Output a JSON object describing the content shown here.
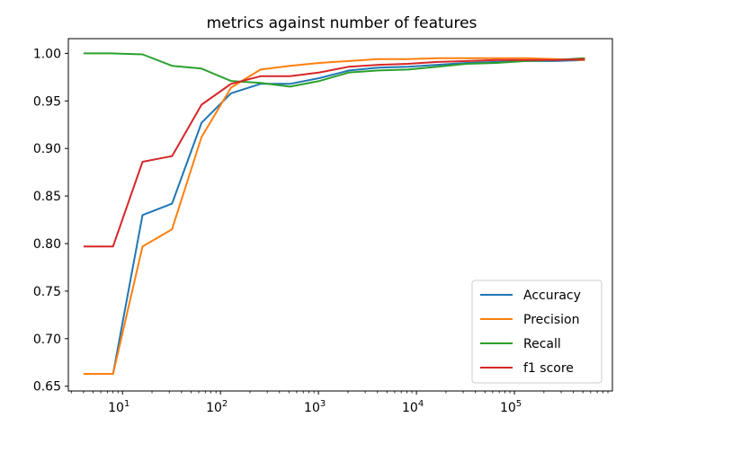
{
  "chart_data": {
    "type": "line",
    "title": "metrics against number of features",
    "xlabel": "",
    "ylabel": "",
    "x_scale": "log",
    "xlim": [
      2.8,
      1000000
    ],
    "ylim": [
      0.645,
      1.0155
    ],
    "x_major_ticks": [
      10,
      100,
      1000,
      10000,
      100000
    ],
    "x_tick_labels": [
      {
        "base": "10",
        "exp": "1"
      },
      {
        "base": "10",
        "exp": "2"
      },
      {
        "base": "10",
        "exp": "3"
      },
      {
        "base": "10",
        "exp": "4"
      },
      {
        "base": "10",
        "exp": "5"
      }
    ],
    "y_ticks": [
      0.65,
      0.7,
      0.75,
      0.8,
      0.85,
      0.9,
      0.95,
      1.0
    ],
    "y_tick_labels": [
      "0.65",
      "0.70",
      "0.75",
      "0.80",
      "0.85",
      "0.90",
      "0.95",
      "1.00"
    ],
    "grid": false,
    "legend_position": "lower-right",
    "x": [
      4,
      8,
      16,
      32,
      64,
      128,
      256,
      512,
      1024,
      2048,
      4096,
      8192,
      16384,
      32768,
      65536,
      131072,
      262144,
      524288
    ],
    "series": [
      {
        "name": "Accuracy",
        "color": "#1f77b4",
        "values": [
          0.663,
          0.663,
          0.83,
          0.842,
          0.927,
          0.958,
          0.968,
          0.968,
          0.974,
          0.982,
          0.985,
          0.986,
          0.988,
          0.99,
          0.991,
          0.992,
          0.992,
          0.993
        ]
      },
      {
        "name": "Precision",
        "color": "#ff7f0e",
        "values": [
          0.663,
          0.663,
          0.797,
          0.815,
          0.912,
          0.964,
          0.983,
          0.987,
          0.99,
          0.992,
          0.994,
          0.994,
          0.995,
          0.995,
          0.995,
          0.995,
          0.994,
          0.993
        ]
      },
      {
        "name": "Recall",
        "color": "#2ca02c",
        "values": [
          1.0,
          1.0,
          0.999,
          0.987,
          0.984,
          0.971,
          0.969,
          0.965,
          0.971,
          0.98,
          0.982,
          0.983,
          0.986,
          0.989,
          0.99,
          0.992,
          0.993,
          0.995
        ]
      },
      {
        "name": "f1 score",
        "color": "#d62728",
        "values": [
          0.797,
          0.797,
          0.886,
          0.892,
          0.946,
          0.968,
          0.976,
          0.976,
          0.98,
          0.986,
          0.988,
          0.989,
          0.991,
          0.992,
          0.993,
          0.993,
          0.993,
          0.994
        ]
      }
    ]
  }
}
